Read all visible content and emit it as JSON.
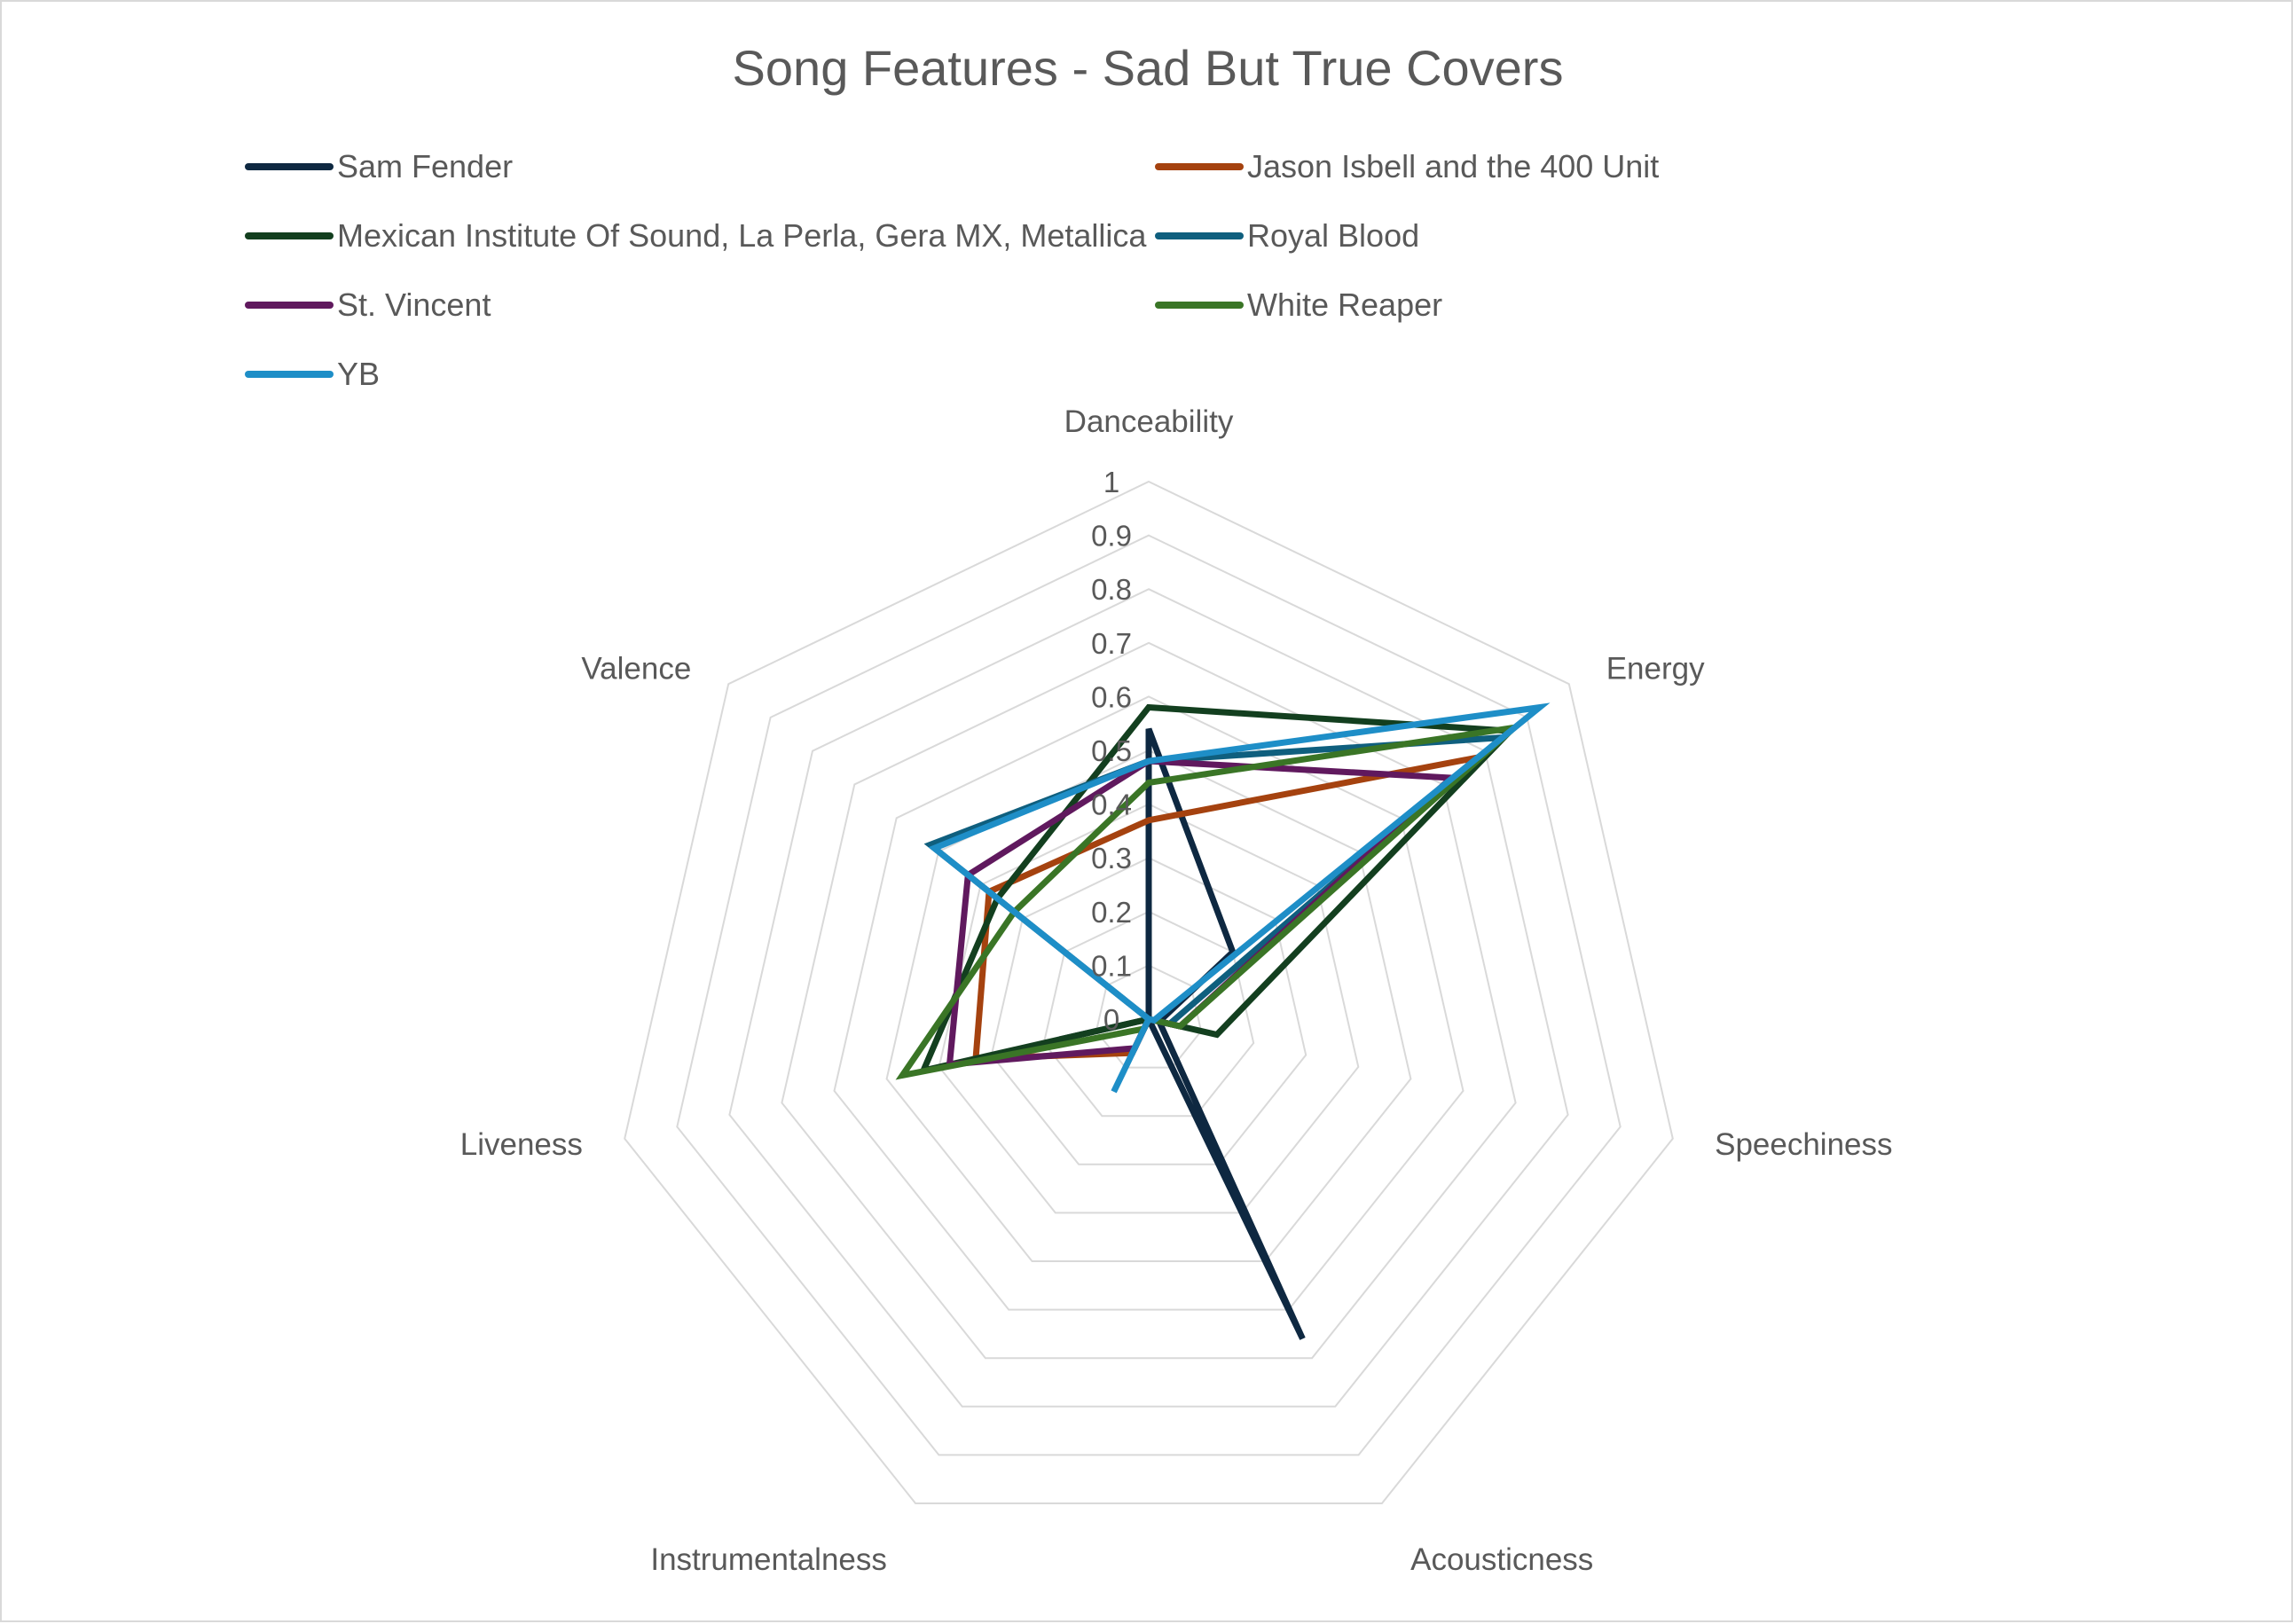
{
  "chart_data": {
    "type": "radar",
    "title": "Song Features - Sad But True Covers",
    "axes": [
      "Danceability",
      "Energy",
      "Speechiness",
      "Acousticness",
      "Instrumentalness",
      "Liveness",
      "Valence"
    ],
    "range": [
      0,
      1
    ],
    "ticks": [
      {
        "value": 0,
        "label": "0"
      },
      {
        "value": 0.1,
        "label": "0.1"
      },
      {
        "value": 0.2,
        "label": "0.2"
      },
      {
        "value": 0.3,
        "label": "0.3"
      },
      {
        "value": 0.4,
        "label": "0.4"
      },
      {
        "value": 0.5,
        "label": "0.5"
      },
      {
        "value": 0.6,
        "label": "0.6"
      },
      {
        "value": 0.7,
        "label": "0.7"
      },
      {
        "value": 0.8,
        "label": "0.8"
      },
      {
        "value": 0.9,
        "label": "0.9"
      },
      {
        "value": 1,
        "label": "1"
      }
    ],
    "grid": true,
    "legend_position": "top",
    "series": [
      {
        "name": "Sam Fender",
        "color": "#0e2841",
        "values": [
          0.54,
          0.2,
          0.02,
          0.66,
          0.0,
          0.17,
          0.0
        ]
      },
      {
        "name": "Jason Isbell and the 400 Unit",
        "color": "#a5420f",
        "values": [
          0.37,
          0.78,
          0.06,
          0.0,
          0.07,
          0.33,
          0.38
        ]
      },
      {
        "name": "Mexican Institute Of Sound, La Perla, Gera MX, Metallica",
        "color": "#133f1f",
        "values": [
          0.58,
          0.86,
          0.13,
          0.0,
          0.0,
          0.43,
          0.36
        ]
      },
      {
        "name": "Royal Blood",
        "color": "#0f5f7e",
        "values": [
          0.48,
          0.84,
          0.04,
          0.0,
          0.02,
          0.0,
          0.52
        ]
      },
      {
        "name": "St. Vincent",
        "color": "#60195e",
        "values": [
          0.48,
          0.72,
          0.06,
          0.0,
          0.06,
          0.38,
          0.43
        ]
      },
      {
        "name": "White Reaper",
        "color": "#3a7526",
        "values": [
          0.44,
          0.87,
          0.06,
          0.0,
          0.02,
          0.47,
          0.32
        ]
      },
      {
        "name": "YB",
        "color": "#1e8ec7",
        "values": [
          0.48,
          0.93,
          0.01,
          0.0,
          0.15,
          0.0,
          0.51
        ]
      }
    ]
  }
}
